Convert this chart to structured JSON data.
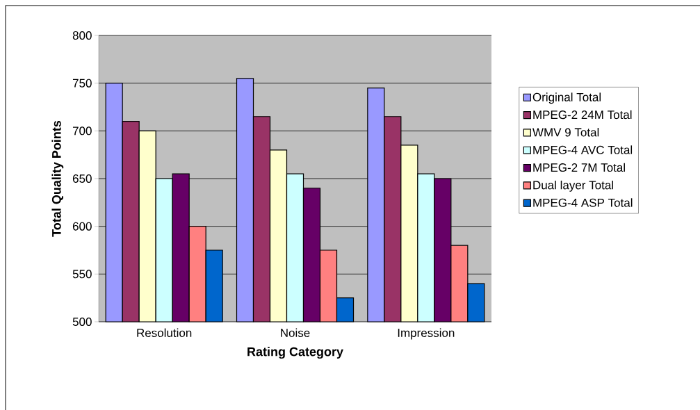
{
  "chart_data": {
    "type": "bar",
    "xlabel": "Rating Category",
    "ylabel": "Total Quality Points",
    "categories": [
      "Resolution",
      "Noise",
      "Impression"
    ],
    "series": [
      {
        "name": "Original Total",
        "color": "#9999ff",
        "values": [
          750,
          755,
          745
        ]
      },
      {
        "name": "MPEG-2 24M Total",
        "color": "#993366",
        "values": [
          710,
          715,
          715
        ]
      },
      {
        "name": "WMV 9 Total",
        "color": "#ffffcc",
        "values": [
          700,
          680,
          685
        ]
      },
      {
        "name": "MPEG-4 AVC Total",
        "color": "#ccffff",
        "values": [
          650,
          655,
          655
        ]
      },
      {
        "name": "MPEG-2 7M Total",
        "color": "#660066",
        "values": [
          655,
          640,
          650
        ]
      },
      {
        "name": "Dual layer Total",
        "color": "#ff8080",
        "values": [
          600,
          575,
          580
        ]
      },
      {
        "name": "MPEG-4 ASP Total",
        "color": "#0066cc",
        "values": [
          575,
          525,
          540
        ]
      }
    ],
    "ylim": [
      500,
      800
    ],
    "yticks": [
      500,
      550,
      600,
      650,
      700,
      750,
      800
    ],
    "grid": "y",
    "legend": "right"
  }
}
